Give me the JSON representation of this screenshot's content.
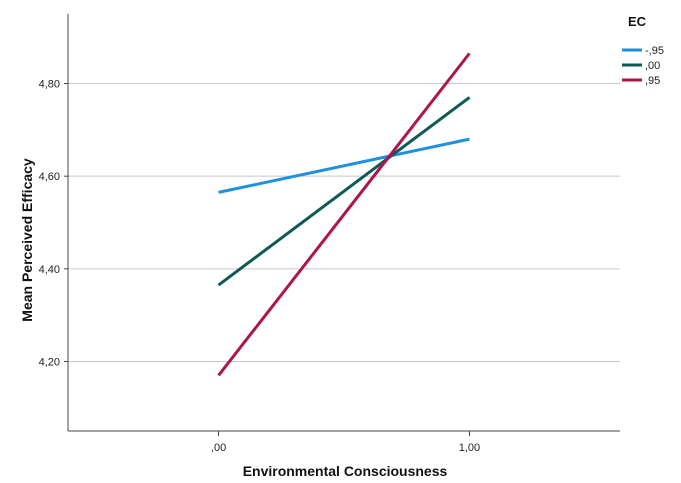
{
  "chart_data": {
    "type": "line",
    "xlabel": "Environmental Consciousness",
    "ylabel": "Mean Perceived Efficacy",
    "categories": [
      ",00",
      "1,00"
    ],
    "x": [
      0,
      1
    ],
    "xlim": [
      -0.6,
      1.6
    ],
    "ylim": [
      4.05,
      4.95
    ],
    "yticks": [
      4.2,
      4.4,
      4.6,
      4.8
    ],
    "ytick_labels": [
      "4,20",
      "4,40",
      "4,60",
      "4,80"
    ],
    "grid": "horizontal",
    "legend": {
      "title": "EC",
      "placement": "top-right"
    },
    "series": [
      {
        "name": "-,95",
        "color": "#1e90e0",
        "values": [
          4.565,
          4.68
        ]
      },
      {
        "name": ",00",
        "color": "#0e5a55",
        "values": [
          4.365,
          4.77
        ]
      },
      {
        "name": ",95",
        "color": "#b0154a",
        "values": [
          4.17,
          4.865
        ]
      }
    ]
  }
}
